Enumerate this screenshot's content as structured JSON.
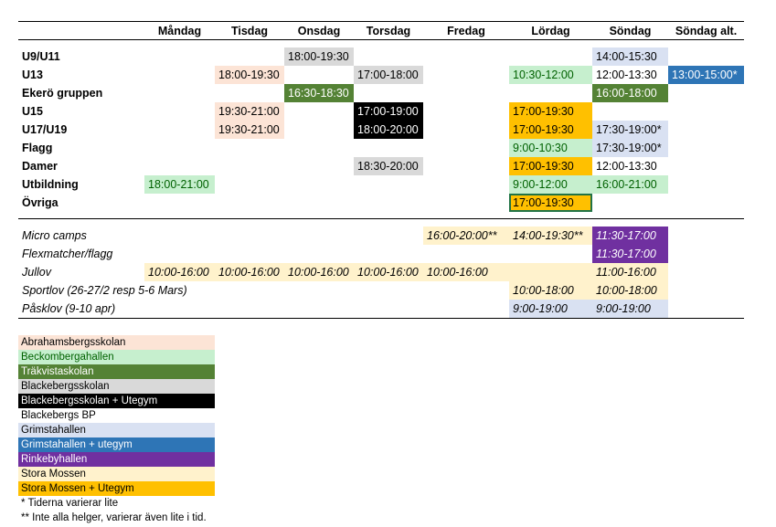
{
  "columns": [
    "",
    "Måndag",
    "Tisdag",
    "Onsdag",
    "Torsdag",
    "Fredag",
    "Lördag",
    "Söndag",
    "Söndag alt."
  ],
  "rows": [
    {
      "label": "U9/U11",
      "cells": [
        null,
        null,
        {
          "t": "18:00-19:30",
          "c": "gray"
        },
        null,
        null,
        null,
        {
          "t": "14:00-15:30",
          "c": "lblue"
        },
        null
      ]
    },
    {
      "label": "U13",
      "cells": [
        null,
        {
          "t": "18:00-19:30",
          "c": "peach"
        },
        null,
        {
          "t": "17:00-18:00",
          "c": "gray"
        },
        null,
        {
          "t": "10:30-12:00",
          "c": "lgreen"
        },
        {
          "t": "12:00-13:30",
          "c": "white"
        },
        {
          "t": "13:00-15:00*",
          "c": "blue"
        }
      ]
    },
    {
      "label": "Ekerö gruppen",
      "cells": [
        null,
        null,
        {
          "t": "16:30-18:30",
          "c": "dgreen"
        },
        null,
        null,
        null,
        {
          "t": "16:00-18:00",
          "c": "dgreen"
        },
        null
      ]
    },
    {
      "label": "U15",
      "cells": [
        null,
        {
          "t": "19:30-21:00",
          "c": "peach"
        },
        null,
        {
          "t": "17:00-19:00",
          "c": "black"
        },
        null,
        {
          "t": "17:00-19:30",
          "c": "orange"
        },
        null,
        null
      ]
    },
    {
      "label": "U17/U19",
      "cells": [
        null,
        {
          "t": "19:30-21:00",
          "c": "peach"
        },
        null,
        {
          "t": "18:00-20:00",
          "c": "black"
        },
        null,
        {
          "t": "17:00-19:30",
          "c": "orange"
        },
        {
          "t": "17:30-19:00*",
          "c": "lblue"
        },
        null
      ]
    },
    {
      "label": "Flagg",
      "cells": [
        null,
        null,
        null,
        null,
        null,
        {
          "t": "9:00-10:30",
          "c": "lgreen"
        },
        {
          "t": "17:30-19:00*",
          "c": "lblue"
        },
        null
      ]
    },
    {
      "label": "Damer",
      "cells": [
        null,
        null,
        null,
        {
          "t": "18:30-20:00",
          "c": "gray"
        },
        null,
        {
          "t": "17:00-19:30",
          "c": "orange"
        },
        {
          "t": "12:00-13:30",
          "c": "white"
        },
        null
      ]
    },
    {
      "label": "Utbildning",
      "cells": [
        {
          "t": "18:00-21:00",
          "c": "lgreen"
        },
        null,
        null,
        null,
        null,
        {
          "t": "9:00-12:00",
          "c": "lgreen"
        },
        {
          "t": "16:00-21:00",
          "c": "lgreen"
        },
        null
      ]
    },
    {
      "label": "Övriga",
      "cells": [
        null,
        null,
        null,
        null,
        null,
        {
          "t": "17:00-19:30",
          "c": "orange sel"
        },
        null,
        null
      ]
    }
  ],
  "lower_rows": [
    {
      "label": "Micro camps",
      "cells": [
        null,
        null,
        null,
        null,
        {
          "t": "16:00-20:00**",
          "c": "cream"
        },
        {
          "t": "14:00-19:30**",
          "c": "cream"
        },
        {
          "t": "11:30-17:00",
          "c": "purple"
        },
        null
      ]
    },
    {
      "label": "Flexmatcher/flagg",
      "cells": [
        null,
        null,
        null,
        null,
        null,
        null,
        {
          "t": "11:30-17:00",
          "c": "purple"
        },
        null
      ]
    },
    {
      "label": "Jullov",
      "cells": [
        {
          "t": "10:00-16:00",
          "c": "cream"
        },
        {
          "t": "10:00-16:00",
          "c": "cream"
        },
        {
          "t": "10:00-16:00",
          "c": "cream"
        },
        {
          "t": "10:00-16:00",
          "c": "cream"
        },
        {
          "t": "10:00-16:00",
          "c": "cream"
        },
        {
          "t": "",
          "c": "cream"
        },
        {
          "t": "11:00-16:00",
          "c": "cream"
        },
        null
      ]
    },
    {
      "label": "Sportlov (26-27/2 resp 5-6 Mars)",
      "cells": [
        null,
        null,
        null,
        null,
        null,
        {
          "t": "10:00-18:00",
          "c": "cream"
        },
        {
          "t": "10:00-18:00",
          "c": "cream"
        },
        null
      ]
    },
    {
      "label": "Påsklov (9-10 apr)",
      "cells": [
        null,
        null,
        null,
        null,
        null,
        {
          "t": "9:00-19:00",
          "c": "lblue"
        },
        {
          "t": "9:00-19:00",
          "c": "lblue"
        },
        null
      ]
    }
  ],
  "legend": [
    {
      "t": "Abrahamsbergsskolan",
      "c": "peach"
    },
    {
      "t": "Beckombergahallen",
      "c": "lgreen"
    },
    {
      "t": "Träkvistaskolan",
      "c": "dgreen"
    },
    {
      "t": "Blackebergsskolan",
      "c": "gray"
    },
    {
      "t": "Blackebergsskolan + Utegym",
      "c": "black"
    },
    {
      "t": "Blackebergs BP",
      "c": "white"
    },
    {
      "t": "Grimstahallen",
      "c": "lblue"
    },
    {
      "t": "Grimstahallen + utegym",
      "c": "blue"
    },
    {
      "t": "Rinkebyhallen",
      "c": "purple"
    },
    {
      "t": "Stora Mossen",
      "c": "cream"
    },
    {
      "t": "Stora Mossen + Utegym",
      "c": "orange"
    }
  ],
  "footnotes": [
    "* Tiderna varierar lite",
    "** Inte alla helger, varierar även lite i tid."
  ],
  "colors": {
    "peach": "#FCE4D6",
    "light_green": "#C6EFCE",
    "dark_green": "#548235",
    "gray": "#D9D9D9",
    "black": "#000000",
    "light_blue": "#D9E1F2",
    "blue": "#2E75B6",
    "purple": "#7030A0",
    "cream": "#FFF2CC",
    "orange": "#FFC000"
  }
}
